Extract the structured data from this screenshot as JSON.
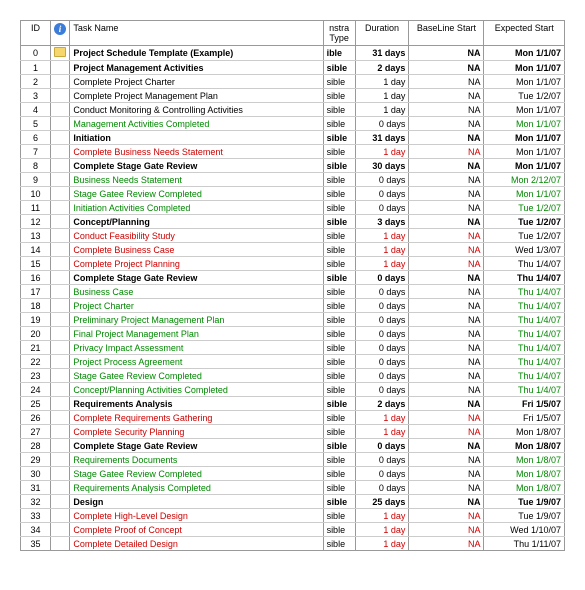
{
  "headers": {
    "id": "ID",
    "icon": "",
    "task": "Task Name",
    "type": "nstra Type",
    "duration": "Duration",
    "baseline": "BaseLine Start",
    "expected": "Expected Start"
  },
  "rows": [
    {
      "id": "0",
      "icon": "note",
      "task": "Project Schedule Template (Example)",
      "indent": 0,
      "bold": true,
      "color": "",
      "type": "ible",
      "duration": "31 days",
      "dBold": true,
      "baseline": "NA",
      "expected": "Mon 1/1/07"
    },
    {
      "id": "1",
      "task": "Project Management Activities",
      "indent": 1,
      "bold": true,
      "color": "",
      "type": "sible",
      "duration": "2 days",
      "dBold": true,
      "baseline": "NA",
      "expected": "Mon 1/1/07"
    },
    {
      "id": "2",
      "task": "Complete Project Charter",
      "indent": 2,
      "bold": false,
      "color": "",
      "type": "sible",
      "duration": "1 day",
      "baseline": "NA",
      "expected": "Mon 1/1/07"
    },
    {
      "id": "3",
      "task": "Complete Project Management Plan",
      "indent": 2,
      "bold": false,
      "color": "",
      "type": "sible",
      "duration": "1 day",
      "baseline": "NA",
      "expected": "Tue 1/2/07"
    },
    {
      "id": "4",
      "task": "Conduct Monitoring & Controlling Activities",
      "indent": 2,
      "bold": false,
      "color": "",
      "type": "sible",
      "duration": "1 day",
      "baseline": "NA",
      "expected": "Mon 1/1/07"
    },
    {
      "id": "5",
      "task": "Management Activities Completed",
      "indent": 2,
      "bold": false,
      "color": "green",
      "type": "sible",
      "duration": "0 days",
      "baseline": "NA",
      "expected": "Mon 1/1/07",
      "eColor": "green"
    },
    {
      "id": "6",
      "task": "Initiation",
      "indent": 1,
      "bold": true,
      "color": "",
      "type": "sible",
      "duration": "31 days",
      "dBold": true,
      "baseline": "NA",
      "expected": "Mon 1/1/07"
    },
    {
      "id": "7",
      "task": "Complete Business Needs Statement",
      "indent": 2,
      "bold": false,
      "color": "red",
      "type": "sible",
      "duration": "1 day",
      "dColor": "red",
      "baseline": "NA",
      "bColor": "red",
      "expected": "Mon 1/1/07"
    },
    {
      "id": "8",
      "task": "Complete Stage Gate Review",
      "indent": 2,
      "bold": true,
      "color": "",
      "type": "sible",
      "duration": "30 days",
      "dBold": true,
      "baseline": "NA",
      "expected": "Mon 1/1/07"
    },
    {
      "id": "9",
      "task": "Business Needs Statement",
      "indent": 3,
      "bold": false,
      "color": "green",
      "type": "sible",
      "duration": "0 days",
      "baseline": "NA",
      "expected": "Mon 2/12/07",
      "eColor": "green"
    },
    {
      "id": "10",
      "task": "Stage Gatee Review Completed",
      "indent": 3,
      "bold": false,
      "color": "green",
      "type": "sible",
      "duration": "0 days",
      "baseline": "NA",
      "expected": "Mon 1/1/07",
      "eColor": "green"
    },
    {
      "id": "11",
      "task": "Initiation Activities Completed",
      "indent": 2,
      "bold": false,
      "color": "green",
      "type": "sible",
      "duration": "0 days",
      "baseline": "NA",
      "expected": "Tue 1/2/07",
      "eColor": "green"
    },
    {
      "id": "12",
      "task": "Concept/Planning",
      "indent": 1,
      "bold": true,
      "color": "",
      "type": "sible",
      "duration": "3 days",
      "dBold": true,
      "baseline": "NA",
      "expected": "Tue 1/2/07"
    },
    {
      "id": "13",
      "task": "Conduct Feasibility Study",
      "indent": 2,
      "bold": false,
      "color": "red",
      "type": "sible",
      "duration": "1 day",
      "dColor": "red",
      "baseline": "NA",
      "bColor": "red",
      "expected": "Tue 1/2/07"
    },
    {
      "id": "14",
      "task": "Complete Business Case",
      "indent": 2,
      "bold": false,
      "color": "red",
      "type": "sible",
      "duration": "1 day",
      "dColor": "red",
      "baseline": "NA",
      "bColor": "red",
      "expected": "Wed 1/3/07"
    },
    {
      "id": "15",
      "task": "Complete Project Planning",
      "indent": 2,
      "bold": false,
      "color": "red",
      "type": "sible",
      "duration": "1 day",
      "dColor": "red",
      "baseline": "NA",
      "bColor": "red",
      "expected": "Thu 1/4/07"
    },
    {
      "id": "16",
      "task": "Complete Stage Gate Review",
      "indent": 2,
      "bold": true,
      "color": "",
      "type": "sible",
      "duration": "0 days",
      "dBold": true,
      "baseline": "NA",
      "expected": "Thu 1/4/07"
    },
    {
      "id": "17",
      "task": "Business Case",
      "indent": 3,
      "bold": false,
      "color": "green",
      "type": "sible",
      "duration": "0 days",
      "baseline": "NA",
      "expected": "Thu 1/4/07",
      "eColor": "green"
    },
    {
      "id": "18",
      "task": "Project Charter",
      "indent": 3,
      "bold": false,
      "color": "green",
      "type": "sible",
      "duration": "0 days",
      "baseline": "NA",
      "expected": "Thu 1/4/07",
      "eColor": "green"
    },
    {
      "id": "19",
      "task": "Preliminary Project Management Plan",
      "indent": 3,
      "bold": false,
      "color": "green",
      "type": "sible",
      "duration": "0 days",
      "baseline": "NA",
      "expected": "Thu 1/4/07",
      "eColor": "green"
    },
    {
      "id": "20",
      "task": "Final Project Management Plan",
      "indent": 3,
      "bold": false,
      "color": "green",
      "type": "sible",
      "duration": "0 days",
      "baseline": "NA",
      "expected": "Thu 1/4/07",
      "eColor": "green"
    },
    {
      "id": "21",
      "task": "Privacy Impact Assessment",
      "indent": 3,
      "bold": false,
      "color": "green",
      "type": "sible",
      "duration": "0 days",
      "baseline": "NA",
      "expected": "Thu 1/4/07",
      "eColor": "green"
    },
    {
      "id": "22",
      "task": "Project Process Agreement",
      "indent": 3,
      "bold": false,
      "color": "green",
      "type": "sible",
      "duration": "0 days",
      "baseline": "NA",
      "expected": "Thu 1/4/07",
      "eColor": "green"
    },
    {
      "id": "23",
      "task": "Stage Gatee Review Completed",
      "indent": 3,
      "bold": false,
      "color": "green",
      "type": "sible",
      "duration": "0 days",
      "baseline": "NA",
      "expected": "Thu 1/4/07",
      "eColor": "green"
    },
    {
      "id": "24",
      "task": "Concept/Planning Activities Completed",
      "indent": 2,
      "bold": false,
      "color": "green",
      "type": "sible",
      "duration": "0 days",
      "baseline": "NA",
      "expected": "Thu 1/4/07",
      "eColor": "green"
    },
    {
      "id": "25",
      "task": "Requirements Analysis",
      "indent": 1,
      "bold": true,
      "color": "",
      "type": "sible",
      "duration": "2 days",
      "dBold": true,
      "baseline": "NA",
      "expected": "Fri 1/5/07"
    },
    {
      "id": "26",
      "task": "Complete Requirements Gathering",
      "indent": 2,
      "bold": false,
      "color": "red",
      "type": "sible",
      "duration": "1 day",
      "dColor": "red",
      "baseline": "NA",
      "bColor": "red",
      "expected": "Fri 1/5/07"
    },
    {
      "id": "27",
      "task": "Complete Security Planning",
      "indent": 2,
      "bold": false,
      "color": "red",
      "type": "sible",
      "duration": "1 day",
      "dColor": "red",
      "baseline": "NA",
      "bColor": "red",
      "expected": "Mon 1/8/07"
    },
    {
      "id": "28",
      "task": "Complete Stage Gate Review",
      "indent": 2,
      "bold": true,
      "color": "",
      "type": "sible",
      "duration": "0 days",
      "dBold": true,
      "baseline": "NA",
      "expected": "Mon 1/8/07"
    },
    {
      "id": "29",
      "task": "Requirements Documents",
      "indent": 3,
      "bold": false,
      "color": "green",
      "type": "sible",
      "duration": "0 days",
      "baseline": "NA",
      "expected": "Mon 1/8/07",
      "eColor": "green"
    },
    {
      "id": "30",
      "task": "Stage Gatee Review Completed",
      "indent": 3,
      "bold": false,
      "color": "green",
      "type": "sible",
      "duration": "0 days",
      "baseline": "NA",
      "expected": "Mon 1/8/07",
      "eColor": "green"
    },
    {
      "id": "31",
      "task": "Requirements Analysis Completed",
      "indent": 2,
      "bold": false,
      "color": "green",
      "type": "sible",
      "duration": "0 days",
      "baseline": "NA",
      "expected": "Mon 1/8/07",
      "eColor": "green"
    },
    {
      "id": "32",
      "task": "Design",
      "indent": 1,
      "bold": true,
      "color": "",
      "type": "sible",
      "duration": "25 days",
      "dBold": true,
      "baseline": "NA",
      "expected": "Tue 1/9/07"
    },
    {
      "id": "33",
      "task": "Complete High-Level Design",
      "indent": 2,
      "bold": false,
      "color": "red",
      "type": "sible",
      "duration": "1 day",
      "dColor": "red",
      "baseline": "NA",
      "bColor": "red",
      "expected": "Tue 1/9/07"
    },
    {
      "id": "34",
      "task": "Complete Proof of Concept",
      "indent": 2,
      "bold": false,
      "color": "red",
      "type": "sible",
      "duration": "1 day",
      "dColor": "red",
      "baseline": "NA",
      "bColor": "red",
      "expected": "Wed 1/10/07"
    },
    {
      "id": "35",
      "task": "Complete Detailed Design",
      "indent": 2,
      "bold": false,
      "color": "red",
      "type": "sible",
      "duration": "1 day",
      "dColor": "red",
      "baseline": "NA",
      "bColor": "red",
      "expected": "Thu 1/11/07"
    }
  ]
}
